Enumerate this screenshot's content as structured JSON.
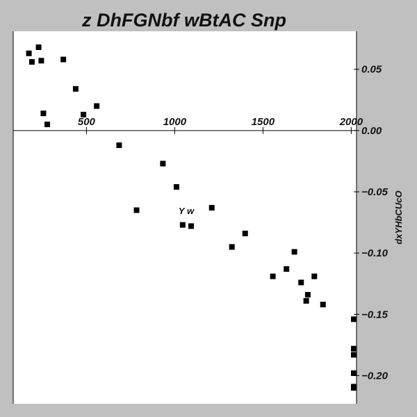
{
  "chart_data": {
    "type": "scatter",
    "title": "z DhFGNbf wBtAC Snp",
    "xlabel": "Y w",
    "ylabel": "dxYHbCUcO",
    "xlim": [
      85,
      2030
    ],
    "ylim": [
      -0.223,
      0.081
    ],
    "grid": false,
    "legend": "none",
    "x_ticks": [
      500,
      1000,
      1500,
      2000
    ],
    "x_tick_labels": [
      "500",
      "1000",
      "1500",
      "2000"
    ],
    "y_ticks": [
      0.05,
      0.0,
      -0.05,
      -0.1,
      -0.15,
      -0.2
    ],
    "y_tick_labels": [
      "0.05",
      "0.00",
      "−0.05",
      "−0.10",
      "−0.15",
      "−0.20"
    ],
    "marker_color": "#000000",
    "background_color": "#ffffff",
    "series": [
      {
        "marker": "square",
        "x": [
          174,
          191,
          229,
          244,
          256,
          278,
          369,
          439,
          483,
          558,
          685,
          784,
          933,
          1010,
          1045,
          1093,
          1210,
          1324,
          1399,
          1556,
          1633,
          1678,
          1716,
          1745,
          1754,
          1791,
          1840,
          2018,
          2040,
          2047,
          2056,
          2065,
          2071
        ],
        "y": [
          0.063,
          0.056,
          0.068,
          0.057,
          0.014,
          0.005,
          0.058,
          0.034,
          0.013,
          0.02,
          -0.012,
          -0.065,
          -0.027,
          -0.046,
          -0.077,
          -0.078,
          -0.063,
          -0.095,
          -0.084,
          -0.119,
          -0.113,
          -0.099,
          -0.124,
          -0.139,
          -0.134,
          -0.119,
          -0.142,
          -0.154,
          -0.183,
          -0.21,
          -0.209,
          -0.178,
          -0.198
        ]
      }
    ]
  }
}
